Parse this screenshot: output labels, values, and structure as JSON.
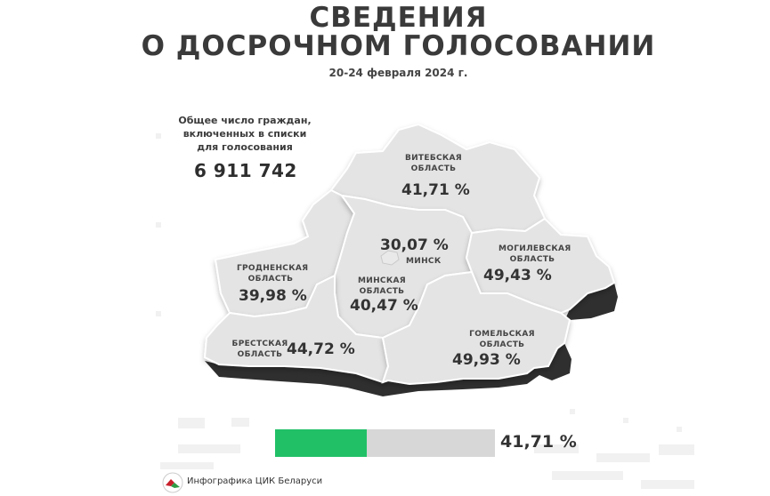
{
  "header": {
    "title_line1": "СВЕДЕНИЯ",
    "title_line2": "О ДОСРОЧНОМ ГОЛОСОВАНИИ",
    "dates": "20-24 февраля 2024 г."
  },
  "total": {
    "label_line1": "Общее число граждан,",
    "label_line2": "включенных в списки",
    "label_line3": "для голосования",
    "value": "6 911 742"
  },
  "regions": {
    "vitebsk": {
      "name_line1": "ВИТЕБСКАЯ",
      "name_line2": "ОБЛАСТЬ",
      "percent": "41,71 %"
    },
    "minsk_city": {
      "name": "МИНСК",
      "percent": "30,07 %"
    },
    "mogilev": {
      "name_line1": "МОГИЛЕВСКАЯ",
      "name_line2": "ОБЛАСТЬ",
      "percent": "49,43 %"
    },
    "grodno": {
      "name_line1": "ГРОДНЕНСКАЯ",
      "name_line2": "ОБЛАСТЬ",
      "percent": "39,98 %"
    },
    "minsk_region": {
      "name_line1": "МИНСКАЯ",
      "name_line2": "ОБЛАСТЬ",
      "percent": "40,47 %"
    },
    "brest": {
      "name_line1": "БРЕСТСКАЯ",
      "name_line2": "ОБЛАСТЬ",
      "percent": "44,72 %"
    },
    "gomel": {
      "name_line1": "ГОМЕЛЬСКАЯ",
      "name_line2": "ОБЛАСТЬ",
      "percent": "49,93 %"
    }
  },
  "progress": {
    "value_text": "41,71 %",
    "fraction": 0.4171,
    "fill_color": "#21c067",
    "track_color": "#d7d7d7"
  },
  "footer": {
    "text": "Инфографика ЦИК Беларуси",
    "logo_icon": "cec-logo-icon",
    "logo_colors": [
      "#c8202b",
      "#2e9b45"
    ]
  },
  "colors": {
    "map_top": "#e4e4e4",
    "map_side": "#2f2f2f",
    "border": "#ffffff"
  }
}
